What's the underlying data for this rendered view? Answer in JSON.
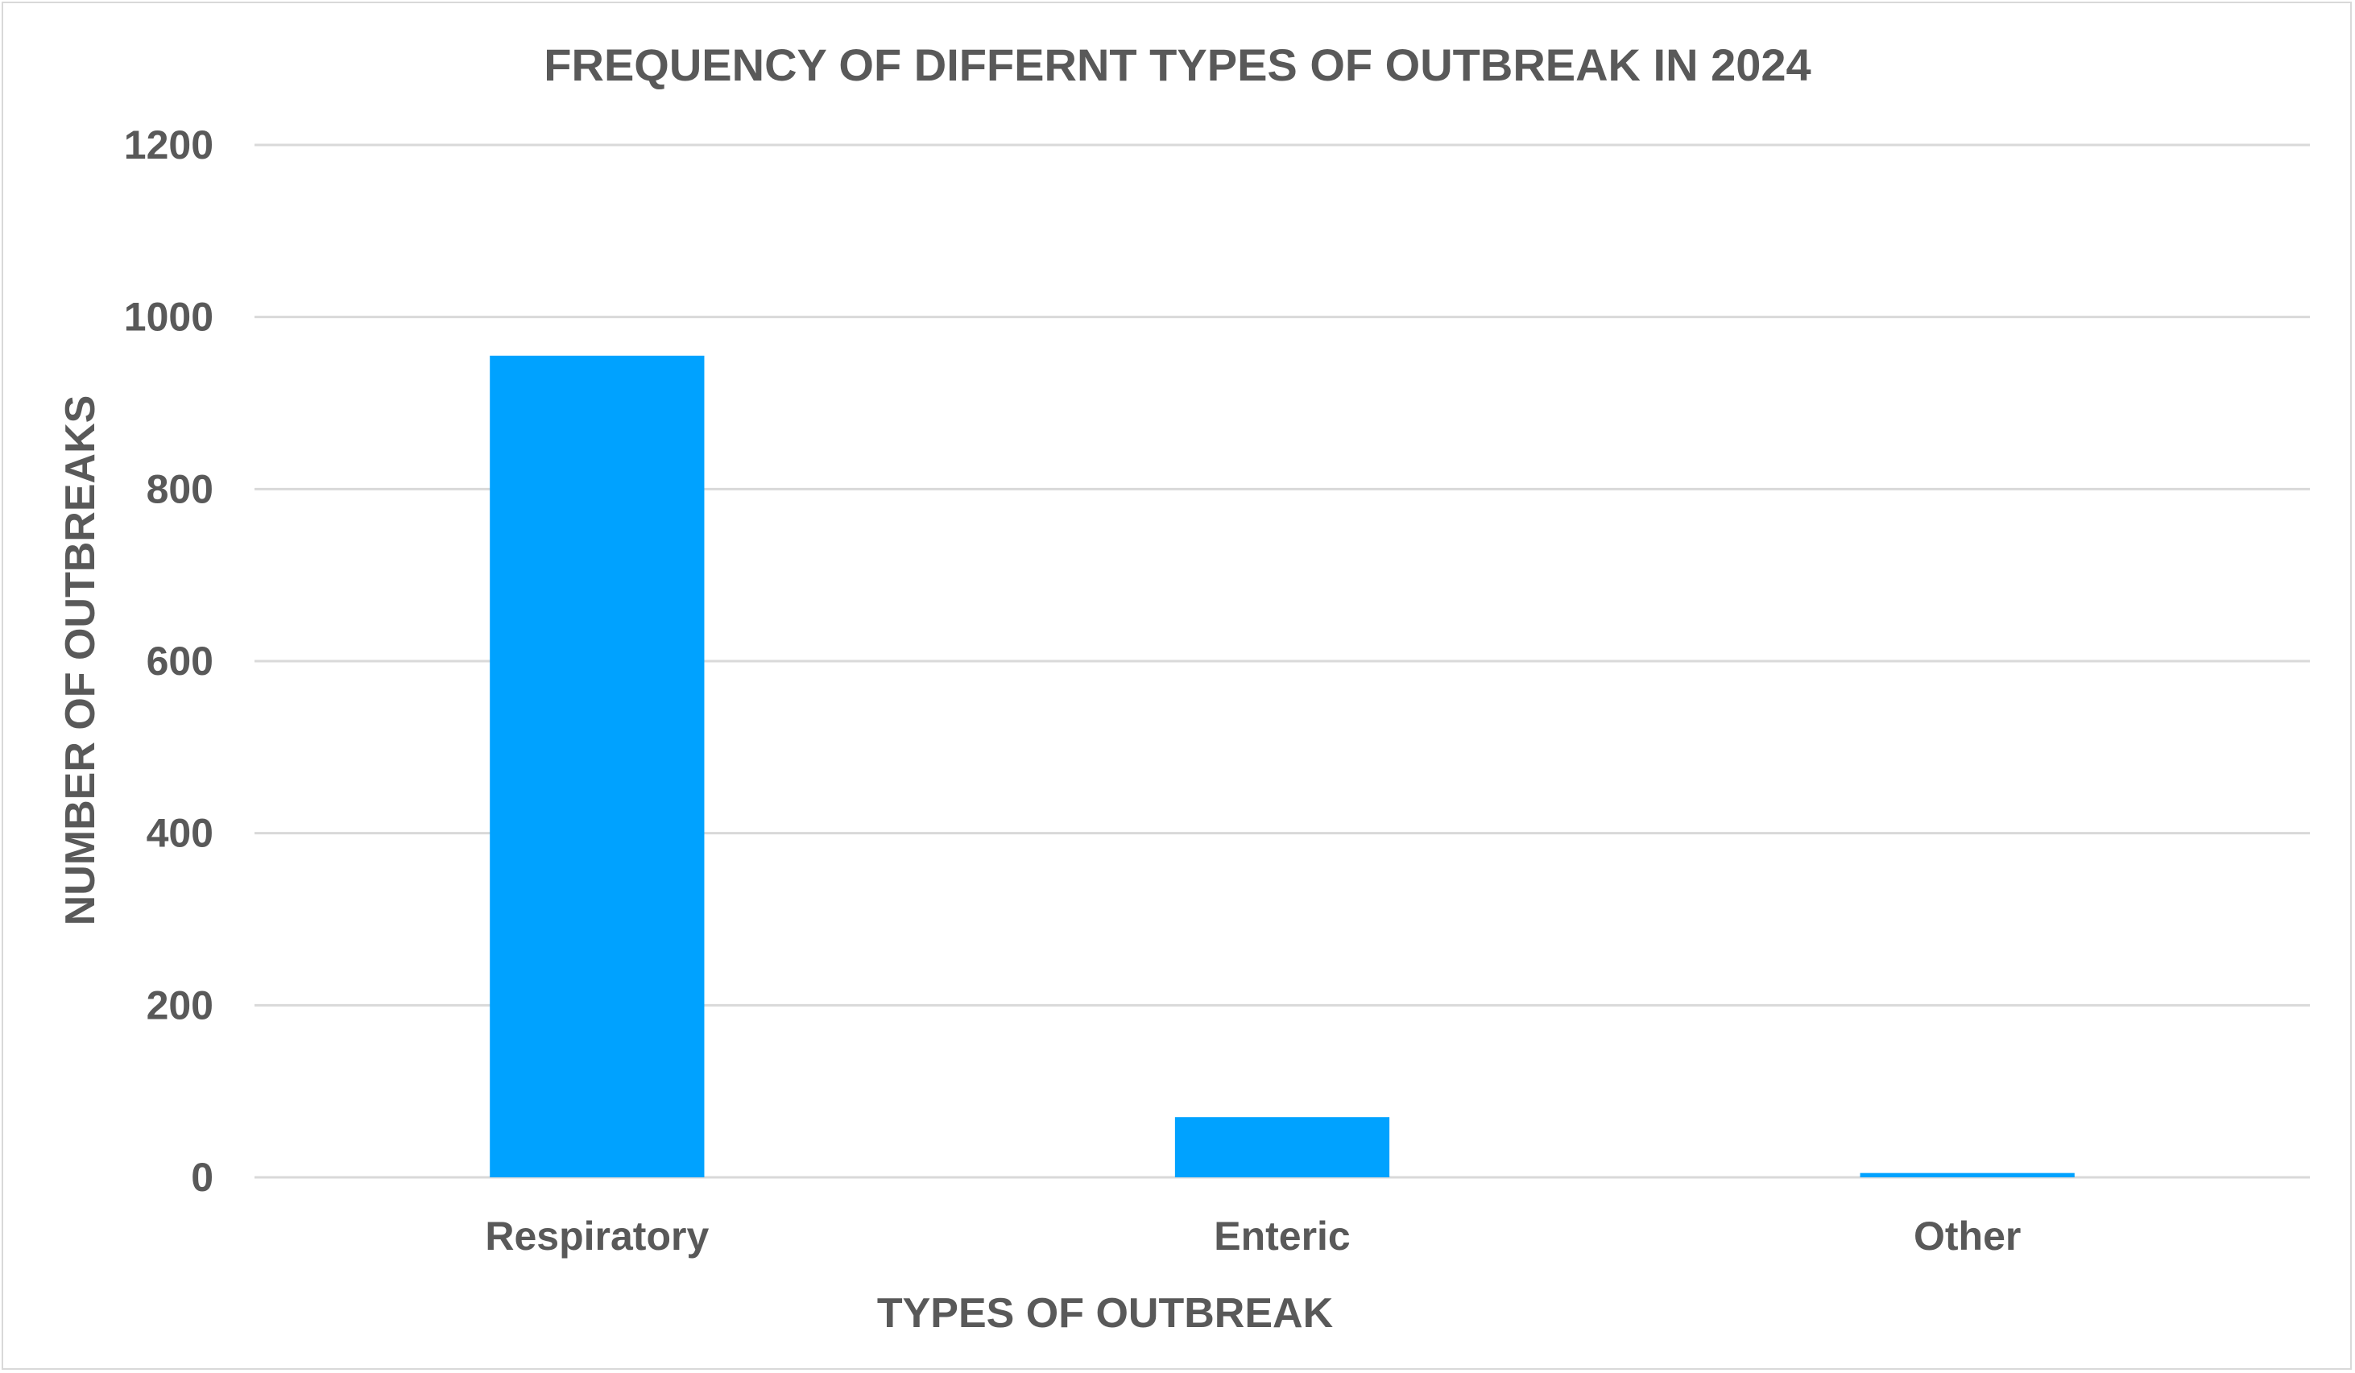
{
  "chart_data": {
    "type": "bar",
    "title": "FREQUENCY OF DIFFERNT TYPES OF OUTBREAK IN 2024",
    "xlabel": "TYPES OF OUTBREAK",
    "ylabel": "NUMBER OF OUTBREAKS",
    "categories": [
      "Respiratory",
      "Enteric",
      "Other"
    ],
    "values": [
      955,
      70,
      5
    ],
    "ylim": [
      0,
      1200
    ],
    "yticks": [
      0,
      200,
      400,
      600,
      800,
      1000,
      1200
    ],
    "grid": true,
    "legend": "none",
    "bar_color": "#00a2ff"
  }
}
